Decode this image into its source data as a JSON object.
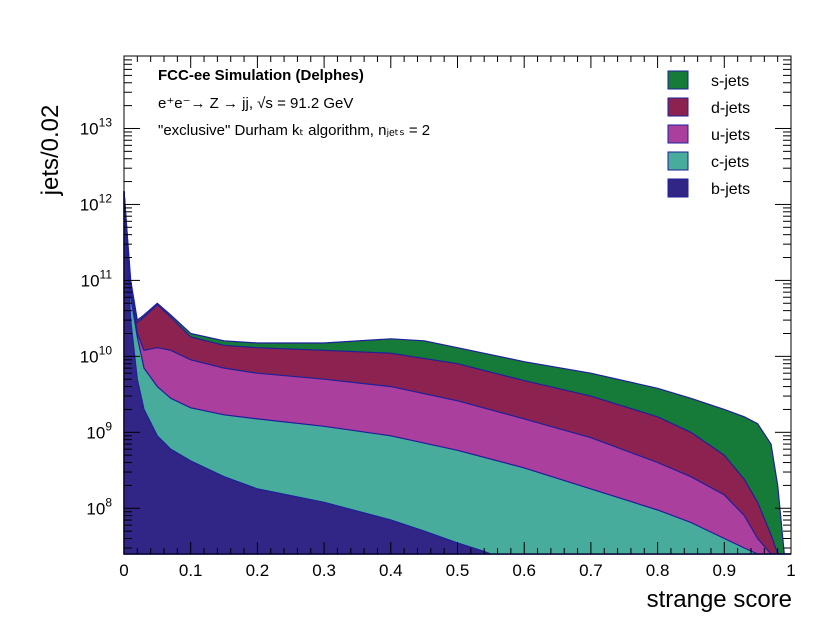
{
  "chart_data": {
    "type": "area",
    "stacked": true,
    "xlabel": "strange score",
    "ylabel": "jets/0.02",
    "xlim": [
      0,
      1
    ],
    "ylim": [
      25000000.0,
      90000000000000.0
    ],
    "yscale": "log",
    "xticks": [
      "0",
      "0.1",
      "0.2",
      "0.3",
      "0.4",
      "0.5",
      "0.6",
      "0.7",
      "0.8",
      "0.9",
      "1"
    ],
    "yticks": [
      {
        "mantissa": "10",
        "exp": "8",
        "value": 100000000.0
      },
      {
        "mantissa": "10",
        "exp": "9",
        "value": 1000000000.0
      },
      {
        "mantissa": "10",
        "exp": "10",
        "value": 10000000000.0
      },
      {
        "mantissa": "10",
        "exp": "11",
        "value": 100000000000.0
      },
      {
        "mantissa": "10",
        "exp": "12",
        "value": 1000000000000.0
      },
      {
        "mantissa": "10",
        "exp": "13",
        "value": 10000000000000.0
      }
    ],
    "annotations": {
      "title": "FCC-ee Simulation (Delphes)",
      "process": "e⁺e⁻→ Z → jj, √s = 91.2 GeV",
      "algorithm": "\"exclusive\" Durham kₜ algorithm, nⱼₑₜₛ = 2"
    },
    "legend_position": "top-right",
    "stack_order_bottom_to_top": [
      "b-jets",
      "c-jets",
      "u-jets",
      "d-jets",
      "s-jets"
    ],
    "series": [
      {
        "name": "s-jets",
        "color": "#167b39",
        "cumulative_x": [
          0,
          0.01,
          0.02,
          0.03,
          0.05,
          0.07,
          0.1,
          0.15,
          0.2,
          0.3,
          0.4,
          0.45,
          0.5,
          0.6,
          0.7,
          0.8,
          0.85,
          0.9,
          0.93,
          0.95,
          0.97,
          0.98,
          0.99,
          1.0
        ],
        "cumulative_y": [
          1500000000000.0,
          100000000000.0,
          30000000000.0,
          35000000000.0,
          50000000000.0,
          35000000000.0,
          20000000000.0,
          16000000000.0,
          15000000000.0,
          15000000000.0,
          17000000000.0,
          16000000000.0,
          13000000000.0,
          8500000000.0,
          6000000000.0,
          3800000000.0,
          2800000000.0,
          2000000000.0,
          1600000000.0,
          1300000000.0,
          700000000.0,
          200000000.0,
          25000000.0,
          25000000.0
        ]
      },
      {
        "name": "d-jets",
        "color": "#8c2250",
        "cumulative_x": [
          0,
          0.01,
          0.02,
          0.03,
          0.05,
          0.07,
          0.1,
          0.15,
          0.2,
          0.3,
          0.4,
          0.5,
          0.6,
          0.7,
          0.8,
          0.85,
          0.9,
          0.93,
          0.95,
          0.97,
          0.98,
          1.0
        ],
        "cumulative_y": [
          1500000000000.0,
          90000000000.0,
          28000000000.0,
          33000000000.0,
          48000000000.0,
          33000000000.0,
          18000000000.0,
          14000000000.0,
          13000000000.0,
          12000000000.0,
          11000000000.0,
          8000000000.0,
          4800000000.0,
          3000000000.0,
          1600000000.0,
          1000000000.0,
          500000000.0,
          240000000.0,
          120000000.0,
          45000000.0,
          25000000.0,
          25000000.0
        ]
      },
      {
        "name": "u-jets",
        "color": "#ab3f9d",
        "cumulative_x": [
          0,
          0.01,
          0.02,
          0.03,
          0.05,
          0.07,
          0.1,
          0.15,
          0.2,
          0.3,
          0.4,
          0.5,
          0.6,
          0.7,
          0.8,
          0.85,
          0.9,
          0.93,
          0.95,
          0.97,
          1.0
        ],
        "cumulative_y": [
          1500000000000.0,
          80000000000.0,
          20000000000.0,
          12000000000.0,
          13000000000.0,
          12000000000.0,
          9000000000.0,
          7000000000.0,
          6000000000.0,
          5000000000.0,
          4000000000.0,
          2600000000.0,
          1500000000.0,
          850000000.0,
          400000000.0,
          260000000.0,
          150000000.0,
          80000000.0,
          40000000.0,
          25000000.0,
          25000000.0
        ]
      },
      {
        "name": "c-jets",
        "color": "#48ac9c",
        "cumulative_x": [
          0,
          0.01,
          0.02,
          0.03,
          0.05,
          0.07,
          0.1,
          0.15,
          0.2,
          0.3,
          0.4,
          0.5,
          0.6,
          0.7,
          0.8,
          0.85,
          0.9,
          0.93,
          0.95,
          1.0
        ],
        "cumulative_y": [
          1500000000000.0,
          60000000000.0,
          18000000000.0,
          7000000000.0,
          4000000000.0,
          2800000000.0,
          2100000000.0,
          1700000000.0,
          1500000000.0,
          1200000000.0,
          900000000.0,
          580000000.0,
          340000000.0,
          180000000.0,
          95000000.0,
          65000000.0,
          40000000.0,
          30000000.0,
          25000000.0,
          25000000.0
        ]
      },
      {
        "name": "b-jets",
        "color": "#312585",
        "cumulative_x": [
          0,
          0.01,
          0.02,
          0.03,
          0.05,
          0.07,
          0.1,
          0.15,
          0.2,
          0.3,
          0.4,
          0.45,
          0.5,
          0.54,
          0.55,
          1.0
        ],
        "cumulative_y": [
          1500000000000.0,
          30000000000.0,
          5000000000.0,
          2000000000.0,
          900000000.0,
          600000000.0,
          420000000.0,
          260000000.0,
          180000000.0,
          120000000.0,
          70000000.0,
          50000000.0,
          35000000.0,
          27000000.0,
          25000000.0,
          25000000.0
        ]
      }
    ]
  }
}
